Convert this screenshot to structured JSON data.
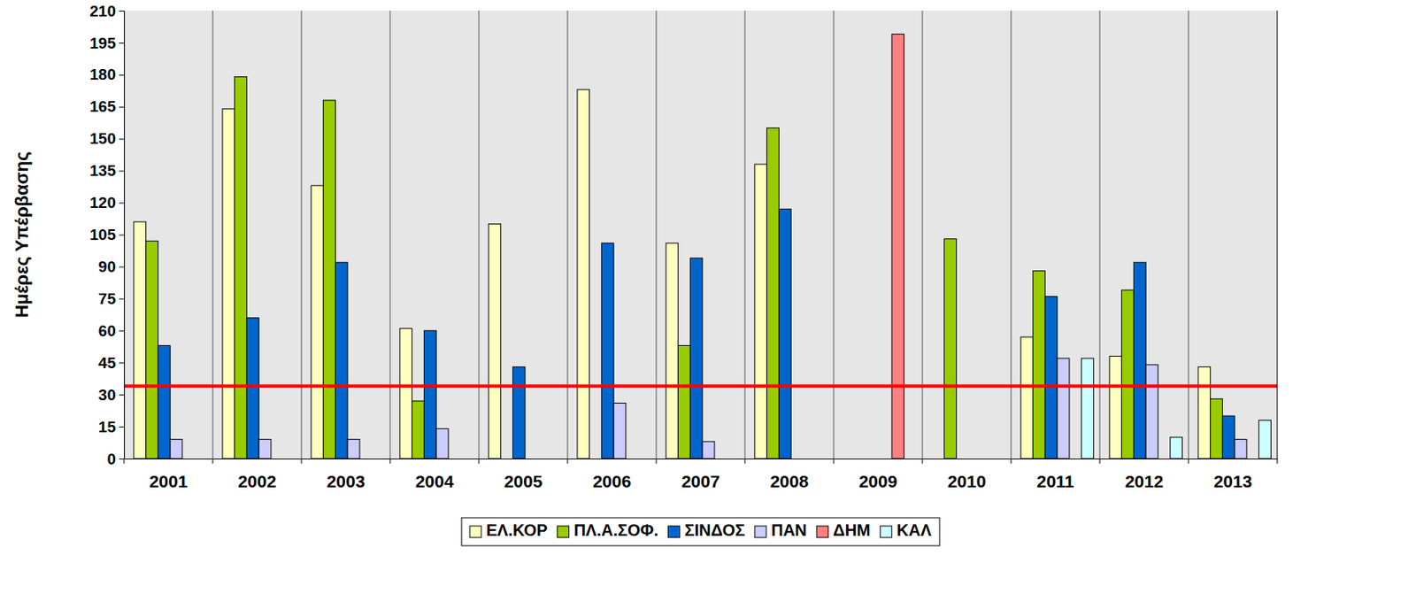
{
  "chart_data": {
    "type": "bar",
    "y_label": "Ημέρες Υπέρβασης",
    "categories": [
      "2001",
      "2002",
      "2003",
      "2004",
      "2005",
      "2006",
      "2007",
      "2008",
      "2009",
      "2010",
      "2011",
      "2012",
      "2013"
    ],
    "series": [
      {
        "name": "ΕΛ.ΚΟΡ",
        "color": "#ffffc0",
        "values": [
          111,
          164,
          128,
          61,
          110,
          173,
          101,
          138,
          null,
          null,
          57,
          48,
          43
        ]
      },
      {
        "name": "ΠΛ.Α.ΣΟΦ.",
        "color": "#99cc00",
        "values": [
          102,
          179,
          168,
          27,
          null,
          null,
          53,
          155,
          null,
          103,
          88,
          79,
          28
        ]
      },
      {
        "name": "ΣΙΝΔΟΣ",
        "color": "#0066cc",
        "values": [
          53,
          66,
          92,
          60,
          43,
          101,
          94,
          117,
          null,
          null,
          76,
          92,
          20
        ]
      },
      {
        "name": "ΠΑΝ",
        "color": "#ccccff",
        "values": [
          9,
          9,
          9,
          14,
          null,
          26,
          8,
          null,
          null,
          null,
          47,
          44,
          9
        ]
      },
      {
        "name": "ΔΗΜ",
        "color": "#ff8080",
        "values": [
          null,
          null,
          null,
          null,
          null,
          null,
          null,
          null,
          199,
          null,
          null,
          null,
          null
        ]
      },
      {
        "name": "ΚΑΛ",
        "color": "#ccffff",
        "values": [
          null,
          null,
          null,
          null,
          null,
          null,
          null,
          null,
          null,
          null,
          47,
          10,
          18
        ]
      }
    ],
    "threshold": 34,
    "ylim": [
      0,
      210
    ],
    "yticks": [
      0,
      15,
      30,
      45,
      60,
      75,
      90,
      105,
      120,
      135,
      150,
      165,
      180,
      195,
      210
    ],
    "grid": true,
    "legend": "bottom"
  }
}
